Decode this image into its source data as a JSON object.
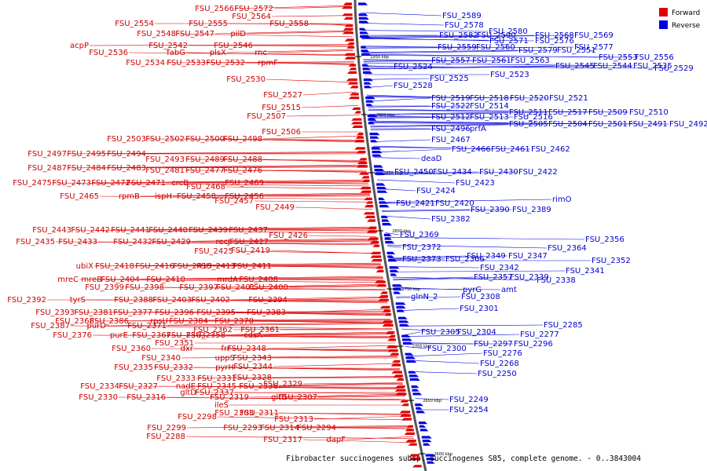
{
  "caption": "Fibrobacter succinogenes subsp. succinogenes S85, complete genome. - 0..3843004",
  "legend": [
    {
      "label": "Forward",
      "color": "#e00000"
    },
    {
      "label": "Reverse",
      "color": "#0000e0"
    }
  ],
  "colors": {
    "forward": "#e00000",
    "reverse": "#0000e0",
    "forward_text": "#cc0000",
    "reverse_text": "#0000cc",
    "backbone": "#555555"
  },
  "scale_ticks": [
    "2950 kbp",
    "2900 kbp",
    "2850 kbp",
    "2800 kbp",
    "2750 kbp",
    "2700 kbp",
    "2650 kbp",
    "2600 kbp"
  ],
  "forward_genes": [
    "FSU_2566",
    "FSU_2572",
    "FSU_2564",
    "FSU_2554",
    "FSU_2555",
    "FSU_2558",
    "FSU_2548",
    "FSU_2547",
    "pilD",
    "acpP",
    "FSU_2542",
    "FSU_2546",
    "FSU_2536",
    "fabG",
    "plsX",
    "rnc",
    "FSU_2534",
    "FSU_2533",
    "FSU_2532",
    "rpmF",
    "FSU_2530",
    "FSU_2527",
    "FSU_2515",
    "FSU_2507",
    "FSU_2506",
    "FSU_2503",
    "FSU_2502",
    "FSU_2500",
    "FSU_2498",
    "FSU_2497",
    "FSU_2495",
    "FSU_2494",
    "FSU_2493",
    "FSU_2489",
    "FSU_2488",
    "FSU_2487",
    "FSU_2484",
    "FSU_2483",
    "FSU_2481",
    "FSU_2477",
    "FSU_2476",
    "FSU_2475",
    "FSU_2473",
    "FSU_2472",
    "FSU_2471",
    "crcB",
    "FSU_2469",
    "FSU_2468",
    "FSU_2465",
    "rpmB",
    "ispH",
    "FSU_2458",
    "FSU_2456",
    "FSU_2457",
    "FSU_2449",
    "FSU_2443",
    "FSU_2442",
    "FSU_2441",
    "FSU_2440",
    "FSU_2439",
    "FSU_2437",
    "FSU_2435",
    "FSU_2433",
    "FSU_2432",
    "FSU_2429",
    "recJ",
    "FSU_2427",
    "FSU_2426",
    "FSU_2425",
    "FSU_2419",
    "ubiX",
    "FSU_2418",
    "FSU_2416",
    "FSU_2415",
    "FSU_2413",
    "FSU_2411",
    "mreC",
    "mreB",
    "FSU_2404",
    "FSU_2410",
    "mrdA",
    "FSU_2408",
    "FSU_2399",
    "FSU_2398",
    "FSU_2397",
    "FSU_2401",
    "FSU_2400",
    "FSU_2392",
    "tyrS",
    "FSU_2388",
    "FSU_2403",
    "FSU_2402",
    "FSU_2394",
    "FSU_2393",
    "FSU_2381",
    "FSU_2377",
    "FSU_2396",
    "FSU_2395",
    "FSU_2383",
    "FSU_2368",
    "FSU_2386",
    "rpsU",
    "FSU_2384",
    "FSU_2370",
    "FSU_2387",
    "purD",
    "FSU_2371",
    "FSU_2362",
    "FSU_2361",
    "FSU_2376",
    "purE",
    "FSU_2367",
    "FSU_2363",
    "FSU_2358",
    "cdsA",
    "FSU_2351",
    "FSU_2360",
    "dxr",
    "frr",
    "FSU_2348",
    "FSU_2340",
    "uppS",
    "FSU_2343",
    "FSU_2335",
    "FSU_2332",
    "pyrH",
    "FSU_2344",
    "FSU_2333",
    "FSU_2331",
    "FSU_2328",
    "FSU_2334",
    "FSU_2327",
    "nadE",
    "FSU_2345",
    "FSU_2336",
    "FSU_2329",
    "gltD",
    "FSU_2337",
    "FSU_2330",
    "FSU_2316",
    "FSU_2319",
    "gltB",
    "FSU_2307",
    "ileS",
    "FSU_2303",
    "FSU_2311",
    "FSU_2298",
    "FSU_2313",
    "FSU_2299",
    "FSU_2293",
    "FSU_2314",
    "FSU_2294",
    "FSU_2288",
    "FSU_2317",
    "dapF"
  ],
  "reverse_genes": [
    "FSU_2589",
    "FSU_2578",
    "FSU_2580",
    "FSU_2582",
    "FSU_2590",
    "FSU_2568",
    "FSU_2569",
    "FSU_2571",
    "FSU_2576",
    "FSU_2559",
    "FSU_2560",
    "FSU_2577",
    "FSU_2579",
    "FSU_2551",
    "FSU_2553",
    "FSU_2556",
    "FSU_2557",
    "FSU_2561",
    "FSU_2563",
    "FSU_2545",
    "FSU_2544",
    "FSU_2535",
    "FSU_2529",
    "FSU_2524",
    "FSU_2523",
    "FSU_2525",
    "FSU_2528",
    "FSU_2519",
    "FSU_2518",
    "FSU_2520",
    "FSU_2521",
    "FSU_2522",
    "FSU_2514",
    "FSU_2511",
    "FSU_2517",
    "FSU_2509",
    "FSU_2510",
    "FSU_2512",
    "FSU_2513",
    "FSU_2516",
    "FSU_2505",
    "FSU_2504",
    "FSU_2501",
    "FSU_2491",
    "FSU_2492",
    "FSU_2496",
    "prfA",
    "FSU_2467",
    "FSU_2466",
    "FSU_2461",
    "FSU_2462",
    "deaD",
    "FSU_2450",
    "FSU_2434",
    "FSU_2430",
    "FSU_2422",
    "FSU_2423",
    "FSU_2424",
    "FSU_2421",
    "FSU_2420",
    "FSU_2390",
    "FSU_2389",
    "rimO",
    "FSU_2382",
    "FSU_2369",
    "FSU_2372",
    "FSU_2373",
    "FSU_2366",
    "FSU_2349",
    "FSU_2347",
    "FSU_2364",
    "FSU_2356",
    "FSU_2342",
    "FSU_2352",
    "FSU_2341",
    "FSU_2357",
    "FSU_2339",
    "FSU_2338",
    "pyrG",
    "amt",
    "glnN_2",
    "FSU_2308",
    "FSU_2301",
    "FSU_2305",
    "FSU_2304",
    "FSU_2300",
    "FSU_2297",
    "FSU_2296",
    "FSU_2285",
    "FSU_2277",
    "FSU_2276",
    "FSU_2268",
    "FSU_2250",
    "FSU_2249",
    "FSU_2254"
  ]
}
